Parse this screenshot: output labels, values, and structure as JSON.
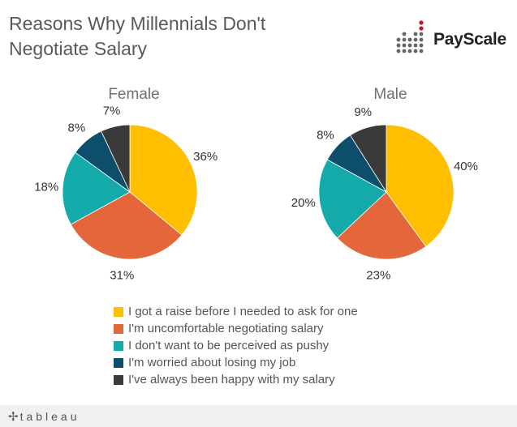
{
  "title": "Reasons Why Millennials Don't Negotiate Salary",
  "brand": {
    "name": "PayScale",
    "accent_color": "#c8102e"
  },
  "footer": {
    "logo_text": "tableau",
    "logo_icon": "tableau-plus-icon"
  },
  "colors": [
    "#ffbf00",
    "#e3673a",
    "#14aaaa",
    "#0d4f6b",
    "#3a3a3a"
  ],
  "chart_data": {
    "type": "pie",
    "categories": [
      "I got a raise before I needed to ask for one",
      "I'm uncomfortable negotiating salary",
      "I don't want to be perceived as pushy",
      "I'm worried about losing my job",
      "I've always been happy with my salary"
    ],
    "series": [
      {
        "name": "Female",
        "values": [
          36,
          31,
          18,
          8,
          7
        ],
        "labels": [
          "36%",
          "31%",
          "18%",
          "8%",
          "7%"
        ]
      },
      {
        "name": "Male",
        "values": [
          40,
          23,
          20,
          8,
          9
        ],
        "labels": [
          "40%",
          "23%",
          "20%",
          "8%",
          "9%"
        ]
      }
    ],
    "legend_position": "bottom"
  }
}
